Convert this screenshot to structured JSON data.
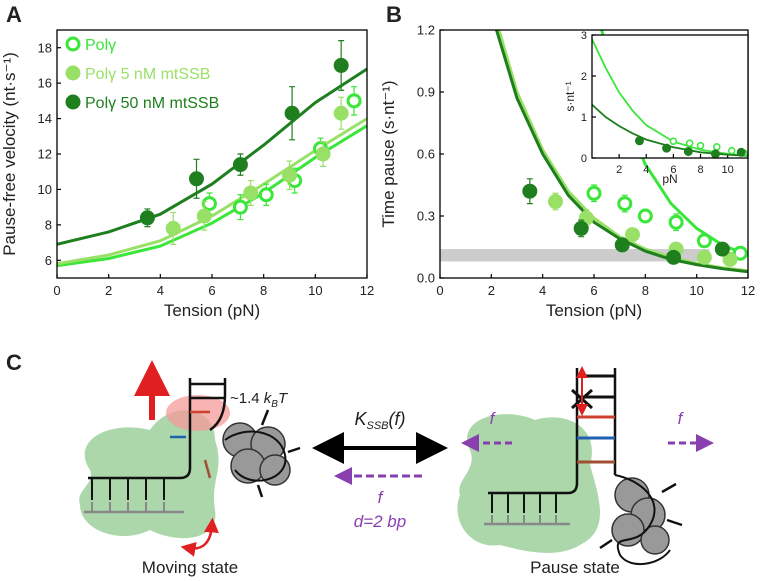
{
  "panel_labels": [
    "A",
    "B",
    "C"
  ],
  "chart_data": [
    {
      "type": "scatter",
      "xlabel": "Tension (pN)",
      "ylabel": "Pause-free velocity (nt·s⁻¹)",
      "xlim": [
        0,
        12
      ],
      "ylim": [
        5,
        19
      ],
      "xticks": [
        0,
        2,
        4,
        6,
        8,
        10,
        12
      ],
      "yticks": [
        6,
        8,
        10,
        12,
        14,
        16,
        18
      ],
      "legend": "upper left",
      "series": [
        {
          "name": "Polγ",
          "color": "#39e639",
          "marker": "open",
          "x": [
            5.9,
            7.1,
            8.1,
            9.2,
            10.2,
            11.5
          ],
          "values": [
            9.2,
            9.0,
            9.7,
            10.5,
            12.3,
            15.0
          ],
          "errors": [
            0.6,
            0.7,
            0.6,
            0.7,
            0.6,
            0.8
          ]
        },
        {
          "name": "Polγ 5 nM mtSSB",
          "color": "#99e066",
          "marker": "filled",
          "x": [
            4.5,
            5.7,
            7.5,
            9.0,
            10.3,
            11.0
          ],
          "values": [
            7.8,
            8.5,
            9.8,
            10.8,
            12.0,
            14.3
          ],
          "errors": [
            0.9,
            0.8,
            0.7,
            0.8,
            0.7,
            0.9
          ]
        },
        {
          "name": "Polγ 50 nM mtSSB",
          "color": "#1f7f1f",
          "marker": "filled",
          "x": [
            3.5,
            5.4,
            7.1,
            9.1,
            11.0
          ],
          "values": [
            8.4,
            10.6,
            11.4,
            14.3,
            17.0
          ],
          "errors": [
            0.5,
            1.1,
            0.6,
            1.5,
            1.4
          ]
        },
        {
          "color": "#39e639",
          "marker": "line",
          "x": [
            0,
            2,
            4,
            6,
            8,
            10,
            12
          ],
          "values": [
            5.7,
            6.1,
            6.8,
            8.1,
            9.8,
            11.8,
            13.6
          ]
        },
        {
          "color": "#99e066",
          "marker": "line",
          "x": [
            0,
            2,
            4,
            6,
            8,
            10,
            12
          ],
          "values": [
            5.8,
            6.3,
            7.1,
            8.5,
            10.3,
            12.2,
            14.0
          ]
        },
        {
          "color": "#1f7f1f",
          "marker": "line",
          "x": [
            0,
            2,
            4,
            6,
            8,
            10,
            12
          ],
          "values": [
            6.9,
            7.6,
            8.6,
            10.3,
            12.5,
            14.9,
            16.8
          ]
        }
      ]
    },
    {
      "type": "scatter",
      "xlabel": "Tension (pN)",
      "ylabel": "Time pause (s·nt⁻¹)",
      "xlim": [
        0,
        12
      ],
      "ylim": [
        0,
        1.2
      ],
      "xticks": [
        0,
        2,
        4,
        6,
        8,
        10,
        12
      ],
      "yticks": [
        {
          "value": 0,
          "label": "0.0"
        },
        0.3,
        0.6,
        0.9,
        1.2
      ],
      "band": {
        "color": "#cccccc",
        "x": [
          0,
          10.5
        ],
        "y": [
          0.08,
          0.14
        ]
      },
      "series": [
        {
          "color": "#39e639",
          "marker": "open",
          "x": [
            6.0,
            7.2,
            8.0,
            9.2,
            10.3,
            11.7
          ],
          "values": [
            0.41,
            0.36,
            0.3,
            0.27,
            0.18,
            0.12
          ],
          "errors": [
            0.04,
            0.04,
            0.03,
            0.04,
            0.03,
            0.03
          ]
        },
        {
          "color": "#99e066",
          "marker": "filled",
          "x": [
            4.5,
            5.7,
            7.5,
            9.2,
            10.3,
            11.3
          ],
          "values": [
            0.37,
            0.29,
            0.21,
            0.14,
            0.1,
            0.09
          ],
          "errors": [
            0.04,
            0.04,
            0.03,
            0.03,
            0.02,
            0.02
          ]
        },
        {
          "color": "#1f7f1f",
          "marker": "filled",
          "x": [
            3.5,
            5.5,
            7.1,
            9.1,
            11.0
          ],
          "values": [
            0.42,
            0.24,
            0.16,
            0.1,
            0.14
          ],
          "errors": [
            0.06,
            0.04,
            0.03,
            0.02,
            0.03
          ]
        },
        {
          "color": "#39e639",
          "marker": "line",
          "x": [
            6.3,
            7,
            8,
            9,
            10,
            11,
            12
          ],
          "values": [
            1.2,
            0.85,
            0.55,
            0.36,
            0.24,
            0.16,
            0.11
          ]
        },
        {
          "color": "#99e066",
          "marker": "line",
          "x": [
            2.3,
            3,
            4,
            5,
            6,
            7,
            8,
            9,
            10,
            11,
            12
          ],
          "values": [
            1.2,
            0.9,
            0.62,
            0.42,
            0.29,
            0.2,
            0.14,
            0.1,
            0.07,
            0.05,
            0.035
          ]
        },
        {
          "color": "#1f7f1f",
          "marker": "line",
          "x": [
            2.2,
            3,
            4,
            5,
            6,
            7,
            8,
            9,
            10,
            11,
            12
          ],
          "values": [
            1.2,
            0.87,
            0.6,
            0.4,
            0.27,
            0.19,
            0.13,
            0.09,
            0.065,
            0.045,
            0.03
          ]
        }
      ]
    },
    {
      "type": "scatter",
      "xlabel": "pN",
      "ylabel": "s·nt⁻¹",
      "xlim": [
        0,
        11.5
      ],
      "ylim": [
        0,
        3
      ],
      "xticks": [
        2,
        4,
        6,
        8,
        10
      ],
      "yticks": [
        0,
        1,
        2,
        3
      ],
      "series": [
        {
          "color": "#39e639",
          "marker": "open",
          "x": [
            6.0,
            7.2,
            8.0,
            9.2,
            10.3,
            11.2
          ],
          "values": [
            0.41,
            0.36,
            0.3,
            0.27,
            0.18,
            0.12
          ]
        },
        {
          "color": "#1f7f1f",
          "marker": "filled",
          "x": [
            3.5,
            5.5,
            7.1,
            9.1,
            11.0
          ],
          "values": [
            0.42,
            0.24,
            0.16,
            0.1,
            0.14
          ]
        },
        {
          "color": "#39e639",
          "marker": "line",
          "x": [
            0,
            1,
            2,
            3,
            4,
            6,
            8,
            10,
            11.5
          ],
          "values": [
            2.9,
            2.2,
            1.6,
            1.15,
            0.8,
            0.4,
            0.2,
            0.1,
            0.06
          ]
        },
        {
          "color": "#1f7f1f",
          "marker": "line",
          "x": [
            0,
            1,
            2,
            3,
            4,
            6,
            8,
            10,
            11.5
          ],
          "values": [
            1.3,
            1.0,
            0.78,
            0.6,
            0.45,
            0.26,
            0.14,
            0.08,
            0.05
          ]
        }
      ]
    }
  ],
  "diagram": {
    "energy": [
      "~1.4 ",
      "k",
      "B",
      "T"
    ],
    "rate": [
      "K",
      "SSB",
      "(f)"
    ],
    "force": "f",
    "step": "d=2 bp",
    "moving": "Moving state",
    "pause": "Pause state"
  }
}
